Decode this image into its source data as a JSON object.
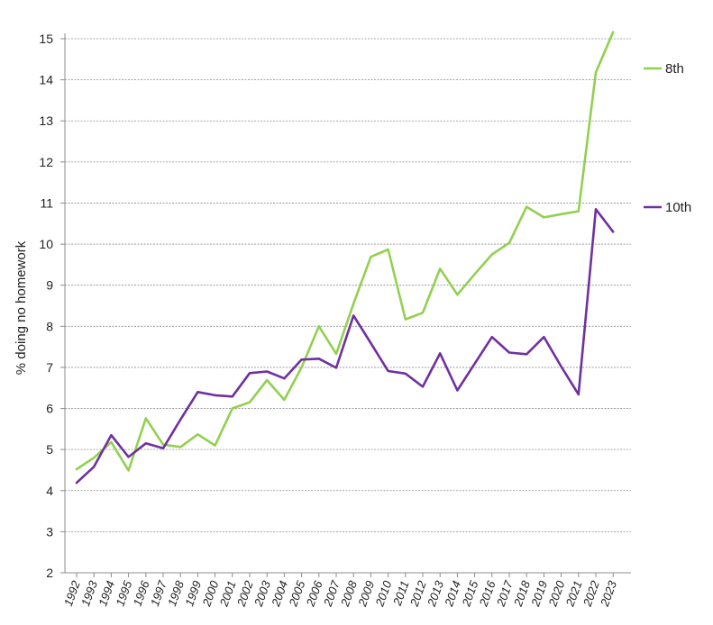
{
  "chart_data": {
    "type": "line",
    "ylabel": "% doing no homework",
    "xlabel": "",
    "title": "",
    "ylim": [
      2,
      15
    ],
    "yticks": [
      2,
      3,
      4,
      5,
      6,
      7,
      8,
      9,
      10,
      11,
      12,
      13,
      14,
      15
    ],
    "grid": "horizontal dashed",
    "legend": "right",
    "x": [
      "1992",
      "1993",
      "1994",
      "1995",
      "1996",
      "1997",
      "1998",
      "1999",
      "2000",
      "2001",
      "2002",
      "2003",
      "2004",
      "2005",
      "2006",
      "2007",
      "2008",
      "2009",
      "2010",
      "2011",
      "2012",
      "2013",
      "2014",
      "2015",
      "2016",
      "2017",
      "2018",
      "2019",
      "2020",
      "2021",
      "2022",
      "2023"
    ],
    "series": [
      {
        "name": "8th",
        "color": "#92d050",
        "values": [
          4.52,
          4.8,
          5.18,
          4.49,
          5.76,
          5.12,
          5.06,
          5.37,
          5.1,
          6.0,
          6.15,
          6.69,
          6.21,
          7.0,
          8.0,
          7.33,
          8.55,
          9.69,
          9.87,
          8.17,
          8.33,
          9.4,
          8.77,
          9.27,
          9.75,
          10.03,
          10.91,
          10.65,
          10.73,
          10.8,
          14.18,
          15.16
        ]
      },
      {
        "name": "10th",
        "color": "#7030a0",
        "values": [
          4.19,
          4.58,
          5.35,
          4.82,
          5.15,
          5.03,
          5.73,
          6.4,
          6.32,
          6.29,
          6.86,
          6.9,
          6.73,
          7.19,
          7.21,
          6.99,
          8.26,
          7.59,
          6.91,
          6.85,
          6.53,
          7.34,
          6.44,
          7.09,
          7.74,
          7.36,
          7.32,
          7.74,
          7.02,
          6.34,
          10.85,
          10.3
        ]
      }
    ]
  }
}
